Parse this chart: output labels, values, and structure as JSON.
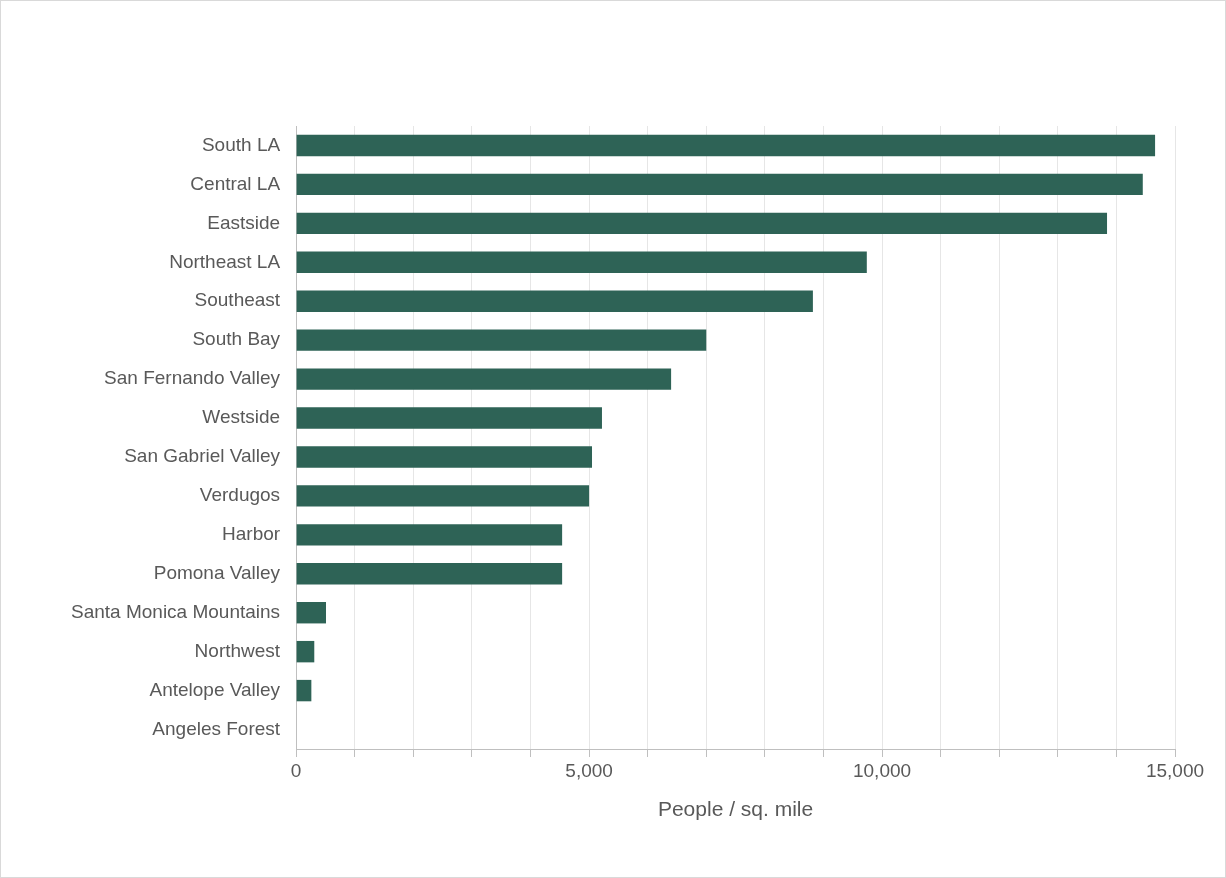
{
  "chart_data": {
    "type": "bar",
    "orientation": "horizontal",
    "xlabel": "People / sq. mile",
    "categories": [
      "South LA",
      "Central LA",
      "Eastside",
      "Northeast LA",
      "Southeast",
      "South Bay",
      "San Fernando Valley",
      "Westside",
      "San Gabriel Valley",
      "Verdugos",
      "Harbor",
      "Pomona Valley",
      "Santa Monica Mountains",
      "Northwest",
      "Antelope Valley",
      "Angeles Forest"
    ],
    "values": [
      14660,
      14450,
      13840,
      9740,
      8820,
      7000,
      6400,
      5220,
      5050,
      5000,
      4540,
      4540,
      510,
      310,
      260,
      null
    ],
    "color": "#2e6356",
    "xlim": [
      0,
      15000
    ],
    "xticks": [
      0,
      {
        "value": 1000,
        "label": null
      },
      {
        "value": 2000,
        "label": null
      },
      {
        "value": 3000,
        "label": null
      },
      {
        "value": 4000,
        "label": null
      },
      {
        "value": 5000,
        "label": "5,000"
      },
      {
        "value": 6000,
        "label": null
      },
      {
        "value": 7000,
        "label": null
      },
      {
        "value": 8000,
        "label": null
      },
      {
        "value": 9000,
        "label": null
      },
      {
        "value": 10000,
        "label": "10,000"
      },
      {
        "value": 11000,
        "label": null
      },
      {
        "value": 12000,
        "label": null
      },
      {
        "value": 13000,
        "label": null
      },
      {
        "value": 14000,
        "label": null
      },
      {
        "value": 15000,
        "label": "15,000"
      }
    ],
    "grid": "x"
  }
}
